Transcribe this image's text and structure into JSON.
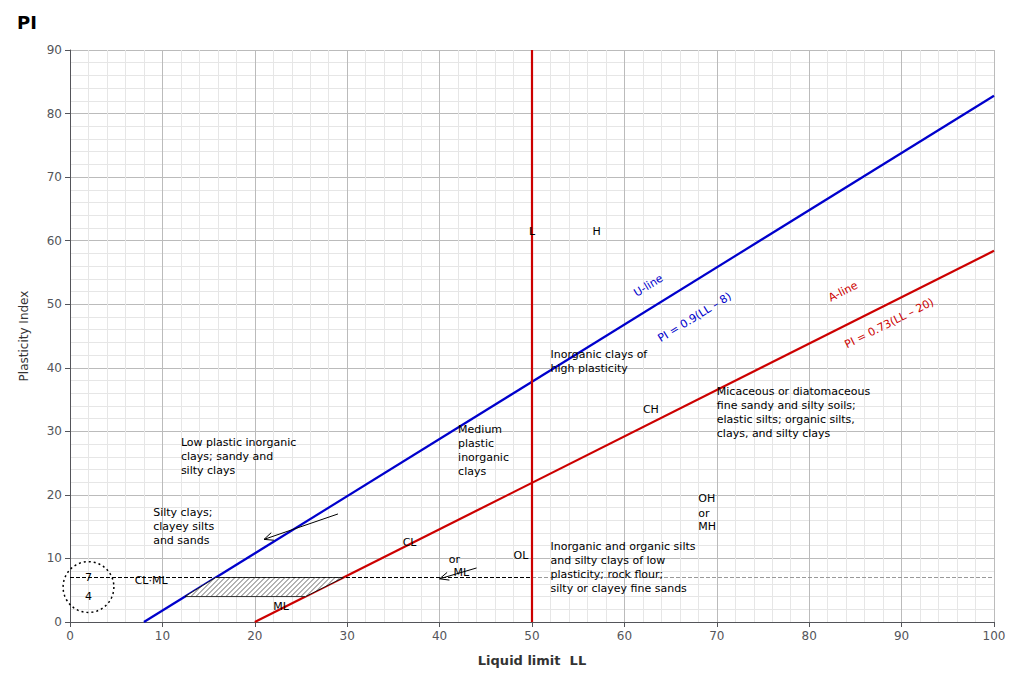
{
  "chart_data": {
    "type": "line",
    "title": "PI",
    "x_label": "Liquid limit  LL",
    "y_label": "Plasticity Index",
    "xlim": [
      0,
      100
    ],
    "ylim": [
      0,
      90
    ],
    "xticks": [
      0,
      10,
      20,
      30,
      40,
      50,
      60,
      70,
      80,
      90,
      100
    ],
    "yticks": [
      0,
      10,
      20,
      30,
      40,
      50,
      60,
      70,
      80,
      90
    ],
    "grid": true,
    "series": [
      {
        "type": "line",
        "color": "#cc0000",
        "x": [
          20,
          100
        ],
        "values": [
          0,
          58.4
        ]
      },
      {
        "type": "line",
        "color": "#0000cc",
        "x": [
          8,
          100
        ],
        "values": [
          0,
          82.8
        ]
      },
      {
        "type": "line",
        "color": "#cc0000",
        "x": [
          50,
          50
        ],
        "values": [
          0,
          90
        ]
      },
      {
        "type": "line",
        "color": "#000000",
        "line_style": "dashed",
        "x": [
          0,
          50
        ],
        "values": [
          7,
          7
        ]
      },
      {
        "type": "line",
        "color": "#999999",
        "line_style": "dashed",
        "x": [
          50,
          100
        ],
        "values": [
          7,
          7
        ]
      },
      {
        "type": "polygon",
        "color": "#000000",
        "x": [
          12.444444444444445,
          15.777777777777779,
          29.589041095890412,
          25.47945205479452
        ],
        "values": [
          4,
          7,
          7,
          4
        ]
      }
    ],
    "ellipse": {
      "x": 2,
      "y": 5.5,
      "width": 5.5,
      "height": 8
    },
    "arrows": [
      {
        "from": [
          29,
          17
        ],
        "to": [
          21,
          13
        ]
      },
      {
        "from": [
          44,
          8.5
        ],
        "to": [
          40,
          6.8
        ]
      }
    ],
    "annotations": [
      {
        "text": "7",
        "x": 2,
        "y": 7,
        "align": "center"
      },
      {
        "text": "4",
        "x": 2,
        "y": 4,
        "align": "center"
      },
      {
        "text": "L",
        "x": 50,
        "y": 61.5,
        "align": "center"
      },
      {
        "text": "H",
        "x": 57,
        "y": 61.5,
        "align": "center"
      },
      {
        "text": "U-line",
        "x": 63,
        "y": 52,
        "color": "#0000cc",
        "along": 1
      },
      {
        "text": "PI = 0.9(LL – 8)",
        "x": 68,
        "y": 47,
        "color": "#0000cc",
        "along": 1
      },
      {
        "text": "A-line",
        "x": 84,
        "y": 51,
        "color": "#cc0000",
        "along": 0
      },
      {
        "text": "PI = 0.73(LL – 20)",
        "x": 89,
        "y": 46,
        "color": "#cc0000",
        "along": 0
      },
      {
        "text": "Low plastic inorganic\nclays; sandy and\nsilty clays",
        "x": 12,
        "y": 26
      },
      {
        "text": "Silty clays;\nclayey silts\nand sands",
        "x": 9,
        "y": 15
      },
      {
        "text": "Medium\nplastic\ninorganic\nclays",
        "x": 42,
        "y": 27
      },
      {
        "text": "Inorganic clays of\nhigh plasticity",
        "x": 52,
        "y": 41
      },
      {
        "text": "Micaceous or diatomaceous\nfine sandy and silty soils;\nelastic silts; organic silts,\nclays, and silty clays",
        "x": 70,
        "y": 33
      },
      {
        "text": "Inorganic and organic silts\nand silty clays of low\nplasticity; rock flour;\nsilty or clayey fine sands",
        "x": 52,
        "y": 8.5
      },
      {
        "text": "CL",
        "x": 36,
        "y": 12.5
      },
      {
        "text": "or",
        "x": 41,
        "y": 9.8
      },
      {
        "text": "ML",
        "x": 41.5,
        "y": 7.8
      },
      {
        "text": "OL",
        "x": 48,
        "y": 10.5
      },
      {
        "text": "CL·ML",
        "x": 7,
        "y": 6.5
      },
      {
        "text": "ML",
        "x": 22,
        "y": 2.5
      },
      {
        "text": "CH",
        "x": 62,
        "y": 33.5
      },
      {
        "text": "OH",
        "x": 68,
        "y": 19.5
      },
      {
        "text": "or",
        "x": 68,
        "y": 17.0
      },
      {
        "text": "MH",
        "x": 68,
        "y": 15.0
      }
    ]
  }
}
